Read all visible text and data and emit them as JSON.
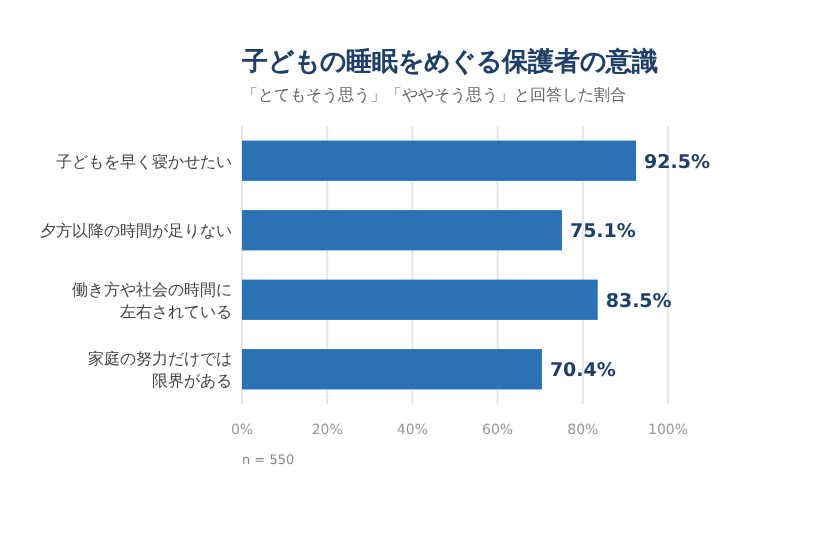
{
  "chart_data": {
    "type": "bar",
    "orientation": "horizontal",
    "title": "子どもの睡眠をめぐる保護者の意識",
    "subtitle": "「とてもそう思う」「ややそう思う」と回答した割合",
    "categories": [
      "子どもを早く寝かせたい",
      "夕方以降の時間が足りない",
      "働き方や社会の時間に左右されている",
      "家庭の努力だけでは限界がある"
    ],
    "values": [
      92.5,
      75.1,
      83.5,
      70.4
    ],
    "value_labels": [
      "92.5%",
      "75.1%",
      "83.5%",
      "70.4%"
    ],
    "color": "#2a72b5",
    "xlim": [
      0,
      100
    ],
    "xticks": [
      {
        "value": 0,
        "label": "0%"
      },
      {
        "value": 20,
        "label": "20%"
      },
      {
        "value": 40,
        "label": "40%"
      },
      {
        "value": 60,
        "label": "60%"
      },
      {
        "value": 80,
        "label": "80%"
      },
      {
        "value": 100,
        "label": "100%"
      }
    ],
    "grid": "x",
    "annotations": [
      "n = 550"
    ]
  }
}
